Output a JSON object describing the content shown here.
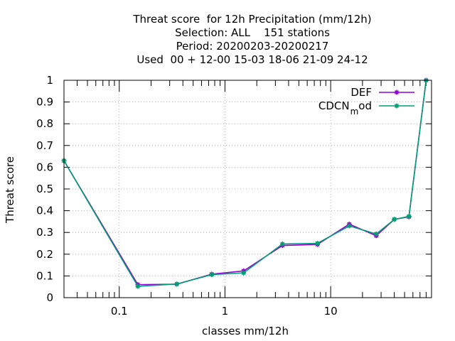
{
  "chart_data": {
    "type": "line",
    "title": [
      "Threat score  for 12h Precipitation (mm/12h)",
      "Selection: ALL    151 stations",
      "Period: 20200203-20200217",
      "Used  00 + 12-00 15-03 18-06 21-09 24-12"
    ],
    "xlabel": "classes mm/12h",
    "ylabel": "Threat score",
    "xscale": "log",
    "xlim": [
      0.03,
      90
    ],
    "ylim": [
      0,
      1
    ],
    "xticks": [
      0.1,
      1,
      10
    ],
    "xtick_labels": [
      "0.1",
      "1",
      "10"
    ],
    "yticks": [
      0,
      0.1,
      0.2,
      0.3,
      0.4,
      0.5,
      0.6,
      0.7,
      0.8,
      0.9,
      1
    ],
    "ytick_labels": [
      "0",
      "0.1",
      "0.2",
      "0.3",
      "0.4",
      "0.5",
      "0.6",
      "0.7",
      "0.8",
      "0.9",
      "1"
    ],
    "grid": true,
    "legend_position": "top-right",
    "x": [
      0.03,
      0.15,
      0.35,
      0.75,
      1.5,
      3.5,
      7.5,
      15,
      27,
      40,
      55,
      80
    ],
    "series": [
      {
        "name": "DEF",
        "color": "#9400d3",
        "values": [
          0.63,
          0.06,
          0.062,
          0.108,
          0.123,
          0.24,
          0.245,
          0.338,
          0.285,
          0.36,
          0.372,
          1.0
        ]
      },
      {
        "name_parts": [
          "CDCN",
          "m",
          "od"
        ],
        "color": "#009e73",
        "values": [
          0.63,
          0.052,
          0.063,
          0.106,
          0.114,
          0.247,
          0.25,
          0.33,
          0.293,
          0.36,
          0.374,
          1.0
        ]
      }
    ]
  }
}
